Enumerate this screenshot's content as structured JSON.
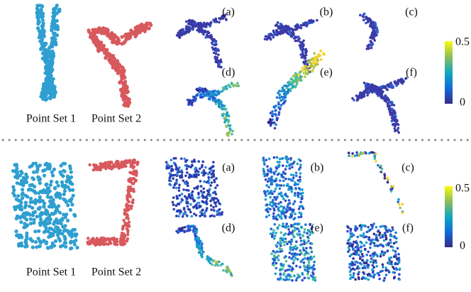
{
  "top": {
    "point_set_1": "Point Set 1",
    "point_set_2": "Point Set 2",
    "panels": [
      "(a)",
      "(b)",
      "(c)",
      "(d)",
      "(e)",
      "(f)"
    ],
    "colorbar": {
      "max": "0.5",
      "min": "0"
    }
  },
  "bottom": {
    "point_set_1": "Point Set 1",
    "point_set_2": "Point Set 2",
    "panels": [
      "(a)",
      "(b)",
      "(c)",
      "(d)",
      "(e)",
      "(f)"
    ],
    "colorbar": {
      "max": "0.5",
      "min": "0"
    }
  }
}
